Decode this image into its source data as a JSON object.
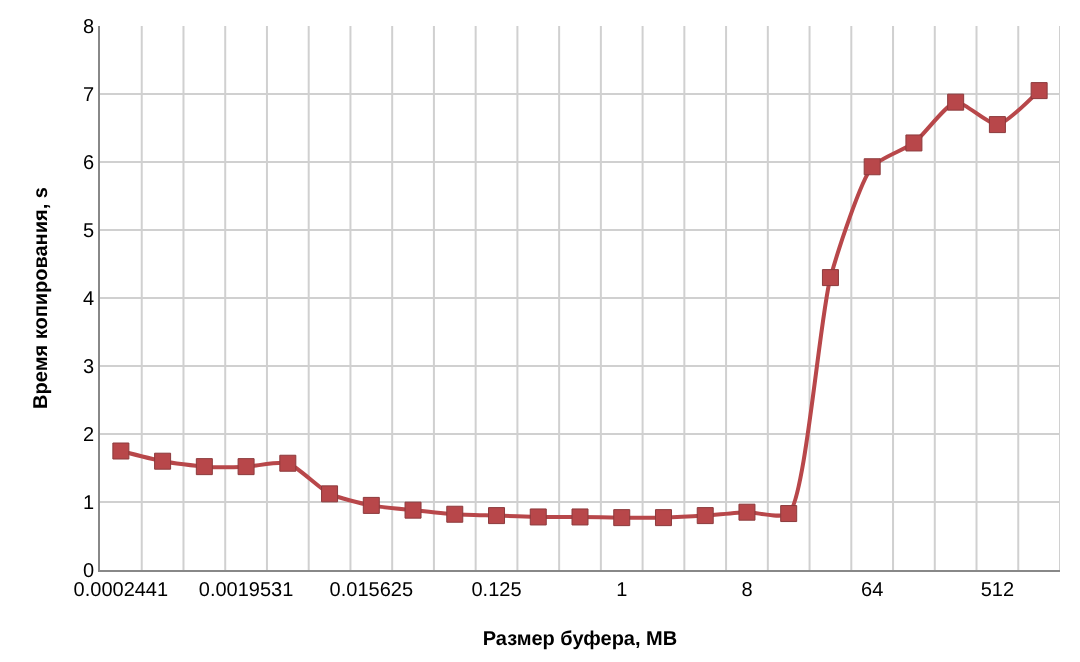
{
  "chart_data": {
    "type": "line",
    "xlabel": "Размер буфера, MB",
    "ylabel": "Время копирования, s",
    "categories": [
      "0.0002441",
      null,
      null,
      "0.0019531",
      null,
      null,
      "0.015625",
      null,
      null,
      "0.125",
      null,
      null,
      "1",
      null,
      null,
      "8",
      null,
      null,
      "64",
      null,
      null,
      "512",
      null
    ],
    "series": [
      {
        "color": "#b8474a",
        "values": [
          1.75,
          1.6,
          1.52,
          1.52,
          1.57,
          1.12,
          0.95,
          0.88,
          0.82,
          0.8,
          0.78,
          0.78,
          0.77,
          0.77,
          0.8,
          0.85,
          0.83,
          4.3,
          5.93,
          6.28,
          6.88,
          6.55,
          7.05
        ]
      }
    ],
    "ylim": [
      0,
      8
    ],
    "yticks": [
      0,
      1,
      2,
      3,
      4,
      5,
      6,
      7,
      8
    ],
    "grid": true,
    "marker": "square",
    "line_style": "solid",
    "legend": false
  }
}
